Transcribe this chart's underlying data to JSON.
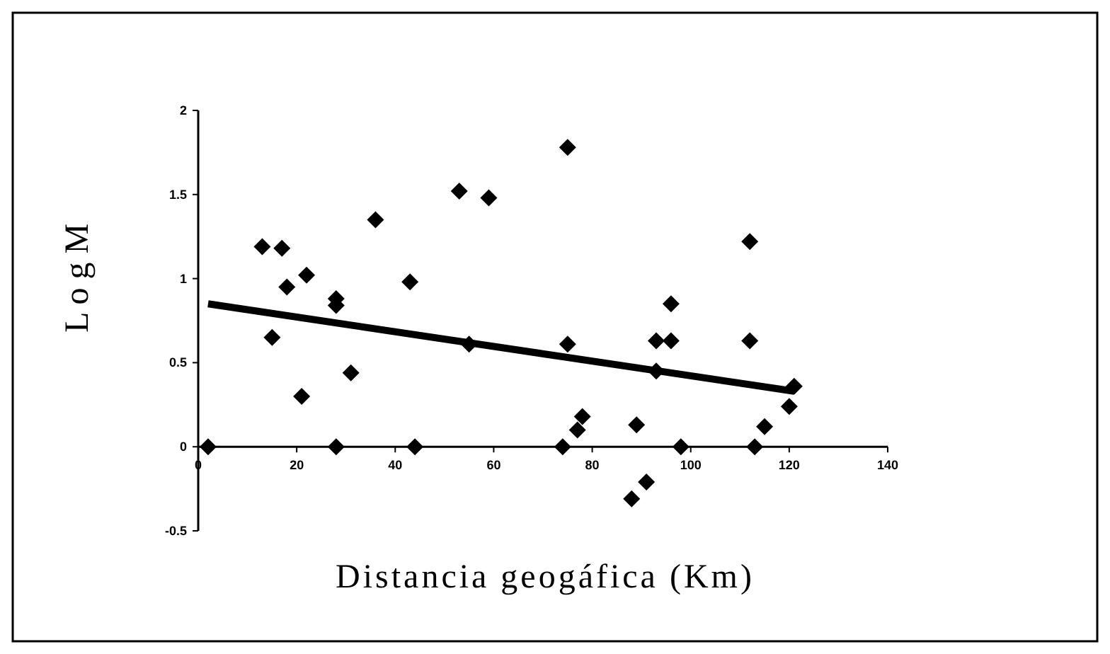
{
  "chart_data": {
    "type": "scatter",
    "xlabel": "Distancia geogáfica (Km)",
    "ylabel": "L o g M",
    "xlim": [
      0,
      140
    ],
    "xticks": [
      0,
      20,
      40,
      60,
      80,
      100,
      120,
      140
    ],
    "ylim": [
      -0.5,
      2
    ],
    "yticks": [
      -0.5,
      0,
      0.5,
      1,
      1.5,
      2
    ],
    "grid": false,
    "marker": "diamond",
    "series": [
      {
        "color": "#000000",
        "x": [
          2,
          13,
          15,
          17,
          18,
          21,
          22,
          28,
          28,
          28,
          31,
          36,
          43,
          44,
          53,
          55,
          59,
          74,
          75,
          75,
          77,
          78,
          89,
          88,
          91,
          93,
          93,
          96,
          96,
          98,
          112,
          112,
          113,
          115,
          120,
          121
        ],
        "values": [
          0,
          1.19,
          0.65,
          1.18,
          0.95,
          0.3,
          1.02,
          0.88,
          0.84,
          0,
          0.44,
          1.35,
          0.98,
          0,
          1.52,
          0.61,
          1.48,
          0,
          1.78,
          0.61,
          0.1,
          0.18,
          0.13,
          -0.31,
          -0.21,
          0.45,
          0.63,
          0.63,
          0.85,
          0,
          1.22,
          0.63,
          0,
          0.12,
          0.24,
          0.36
        ]
      },
      {
        "type": "line",
        "color": "#000000",
        "x": [
          2,
          121
        ],
        "values": [
          0.85,
          0.33
        ],
        "marker": "none"
      }
    ]
  }
}
